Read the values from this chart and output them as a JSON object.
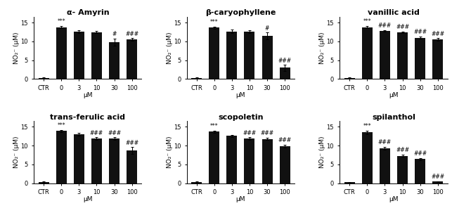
{
  "panels": [
    {
      "title": "α- Amyrin",
      "categories": [
        "CTR",
        "0",
        "3",
        "10",
        "30",
        "100"
      ],
      "values": [
        0.3,
        13.8,
        12.6,
        12.5,
        9.8,
        10.5
      ],
      "errors": [
        0.1,
        0.3,
        0.3,
        0.25,
        1.0,
        0.4
      ],
      "sig_above": [
        "",
        "***",
        "",
        "",
        "#",
        "###"
      ],
      "row": 0,
      "col": 0
    },
    {
      "title": "β-caryophyllene",
      "categories": [
        "CTR",
        "0",
        "3",
        "10",
        "30",
        "100"
      ],
      "values": [
        0.3,
        13.7,
        12.7,
        12.6,
        11.5,
        3.0
      ],
      "errors": [
        0.1,
        0.3,
        0.5,
        0.3,
        0.9,
        0.8
      ],
      "sig_above": [
        "",
        "***",
        "",
        "",
        "#",
        "###"
      ],
      "row": 0,
      "col": 1
    },
    {
      "title": "vanillic acid",
      "categories": [
        "CTR",
        "0",
        "3",
        "10",
        "30",
        "100"
      ],
      "values": [
        0.3,
        13.8,
        12.8,
        12.5,
        11.0,
        10.5
      ],
      "errors": [
        0.1,
        0.3,
        0.2,
        0.2,
        0.3,
        0.4
      ],
      "sig_above": [
        "",
        "***",
        "###",
        "###",
        "###",
        "###"
      ],
      "row": 0,
      "col": 2
    },
    {
      "title": "trans-ferulic acid",
      "categories": [
        "CTR",
        "0",
        "3",
        "10",
        "30",
        "100"
      ],
      "values": [
        0.3,
        13.9,
        13.0,
        11.9,
        11.9,
        8.7
      ],
      "errors": [
        0.1,
        0.3,
        0.3,
        0.35,
        0.35,
        0.9
      ],
      "sig_above": [
        "",
        "***",
        "",
        "###",
        "###",
        "###"
      ],
      "row": 1,
      "col": 0
    },
    {
      "title": "scopoletin",
      "categories": [
        "CTR",
        "0",
        "3",
        "10",
        "30",
        "100"
      ],
      "values": [
        0.3,
        13.7,
        12.6,
        11.9,
        11.8,
        9.8
      ],
      "errors": [
        0.1,
        0.3,
        0.3,
        0.3,
        0.3,
        0.4
      ],
      "sig_above": [
        "",
        "***",
        "",
        "###",
        "###",
        "###"
      ],
      "row": 1,
      "col": 1
    },
    {
      "title": "spilanthol",
      "categories": [
        "CTR",
        "0",
        "3",
        "10",
        "30",
        "100"
      ],
      "values": [
        0.25,
        13.5,
        9.3,
        7.3,
        6.4,
        0.4
      ],
      "errors": [
        0.05,
        0.5,
        0.4,
        0.3,
        0.3,
        0.1
      ],
      "sig_above": [
        "",
        "***",
        "###",
        "###",
        "###",
        "###"
      ],
      "row": 1,
      "col": 2
    }
  ],
  "ylabel": "NO₂⁻ (μM)",
  "xlabel": "μM",
  "ylim": [
    0,
    15
  ],
  "yticks": [
    0,
    5,
    10,
    15
  ],
  "bar_color": "#111111",
  "bar_width": 0.6,
  "sig_fontsize": 5.5,
  "title_fontsize": 8,
  "label_fontsize": 6.5,
  "tick_fontsize": 6,
  "fig_width": 6.43,
  "fig_height": 3.03,
  "dpi": 100
}
